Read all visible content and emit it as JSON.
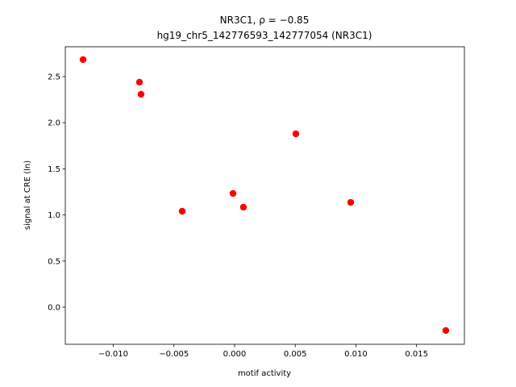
{
  "chart_data": {
    "type": "scatter",
    "title": "NR3C1, ρ = −0.85",
    "subtitle": "hg19_chr5_142776593_142777054 (NR3C1)",
    "x_label": "motif activity",
    "y_label": "signal at CRE (ln)",
    "color": "#ff0000",
    "x": [
      -0.01249,
      -0.00784,
      -0.00771,
      -0.00432,
      -0.00013,
      0.00073,
      0.00505,
      0.00957,
      0.01741
    ],
    "values": [
      2.684,
      2.439,
      2.308,
      1.04,
      1.233,
      1.084,
      1.879,
      1.136,
      -0.253
    ],
    "xlim": [
      -0.01395,
      0.01894
    ],
    "ylim": [
      -0.402,
      2.823
    ],
    "xticks": [
      {
        "value": -0.01,
        "label": "−0.010"
      },
      {
        "value": -0.005,
        "label": "−0.005"
      },
      {
        "value": 0,
        "label": "0.000"
      },
      {
        "value": 0.005,
        "label": "0.005"
      },
      {
        "value": 0.01,
        "label": "0.010"
      },
      {
        "value": 0.015,
        "label": "0.015"
      }
    ],
    "yticks": [
      {
        "value": 0,
        "label": "0.0"
      },
      0.5,
      {
        "value": 1,
        "label": "1.0"
      },
      1.5,
      {
        "value": 2,
        "label": "2.0"
      },
      2.5
    ],
    "grid": false
  }
}
